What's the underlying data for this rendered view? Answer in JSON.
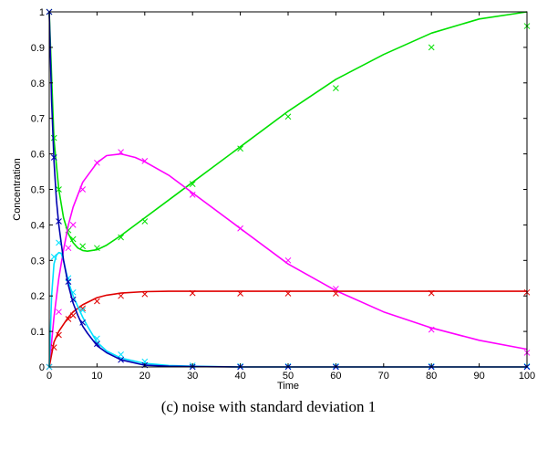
{
  "caption": "(c) noise with standard deviation 1",
  "chart_data": {
    "type": "line",
    "title": "",
    "xlabel": "Time",
    "ylabel": "Concentration",
    "xlim": [
      0,
      100
    ],
    "ylim": [
      0,
      1
    ],
    "xticks": [
      0,
      10,
      20,
      30,
      40,
      50,
      60,
      70,
      80,
      90,
      100
    ],
    "yticks": [
      0,
      0.1,
      0.2,
      0.3,
      0.4,
      0.5,
      0.6,
      0.7,
      0.8,
      0.9,
      1
    ],
    "ytick_labels": [
      "0",
      "0.1",
      "0.2",
      "0.3",
      "0.4",
      "0.5",
      "0.6",
      "0.7",
      "0.8",
      "0.9",
      "1"
    ],
    "grid": false,
    "series": [
      {
        "color": "#00e000",
        "curve": {
          "x": [
            0,
            1,
            2,
            3,
            4,
            5,
            6,
            7,
            8,
            10,
            12,
            15,
            20,
            25,
            30,
            40,
            50,
            60,
            70,
            80,
            90,
            100
          ],
          "y": [
            1.0,
            0.64,
            0.5,
            0.42,
            0.375,
            0.35,
            0.335,
            0.328,
            0.326,
            0.33,
            0.343,
            0.37,
            0.42,
            0.47,
            0.52,
            0.62,
            0.72,
            0.81,
            0.88,
            0.94,
            0.98,
            1.0
          ]
        },
        "markers": {
          "x": [
            0,
            1,
            2,
            4,
            5,
            7,
            10,
            15,
            20,
            30,
            40,
            50,
            60,
            80,
            100
          ],
          "y": [
            1.0,
            0.645,
            0.5,
            0.385,
            0.36,
            0.34,
            0.335,
            0.365,
            0.41,
            0.515,
            0.615,
            0.705,
            0.785,
            0.9,
            0.96
          ]
        }
      },
      {
        "color": "#ff00ff",
        "curve": {
          "x": [
            0,
            1,
            2,
            3,
            4,
            5,
            7,
            10,
            12,
            15,
            18,
            20,
            25,
            30,
            40,
            50,
            60,
            70,
            80,
            90,
            100
          ],
          "y": [
            0,
            0.14,
            0.25,
            0.33,
            0.4,
            0.45,
            0.52,
            0.575,
            0.595,
            0.6,
            0.59,
            0.578,
            0.54,
            0.49,
            0.39,
            0.29,
            0.215,
            0.155,
            0.11,
            0.075,
            0.05
          ]
        },
        "markers": {
          "x": [
            0,
            2,
            4,
            5,
            7,
            10,
            15,
            20,
            30,
            40,
            50,
            60,
            80,
            100
          ],
          "y": [
            0,
            0.155,
            0.335,
            0.4,
            0.5,
            0.575,
            0.605,
            0.58,
            0.485,
            0.39,
            0.3,
            0.22,
            0.105,
            0.04
          ]
        }
      },
      {
        "color": "#e00000",
        "curve": {
          "x": [
            0,
            1,
            2,
            3,
            4,
            5,
            7,
            10,
            12,
            15,
            20,
            25,
            30,
            40,
            50,
            60,
            70,
            80,
            90,
            100
          ],
          "y": [
            0,
            0.07,
            0.1,
            0.12,
            0.14,
            0.155,
            0.175,
            0.195,
            0.202,
            0.208,
            0.212,
            0.213,
            0.213,
            0.213,
            0.213,
            0.213,
            0.213,
            0.213,
            0.213,
            0.213
          ]
        },
        "markers": {
          "x": [
            0,
            1,
            2,
            4,
            5,
            7,
            10,
            15,
            20,
            30,
            40,
            50,
            60,
            80,
            100
          ],
          "y": [
            0,
            0.055,
            0.09,
            0.135,
            0.145,
            0.165,
            0.185,
            0.2,
            0.205,
            0.208,
            0.207,
            0.207,
            0.207,
            0.208,
            0.21
          ]
        }
      },
      {
        "color": "#00e0ff",
        "curve": {
          "x": [
            0,
            0.5,
            1,
            1.5,
            2,
            2.5,
            3,
            3.5,
            4,
            5,
            6,
            7,
            8,
            10,
            12,
            15,
            20,
            25,
            30,
            40,
            50,
            60,
            70,
            80,
            90,
            100
          ],
          "y": [
            0,
            0.2,
            0.29,
            0.315,
            0.322,
            0.32,
            0.3,
            0.27,
            0.24,
            0.2,
            0.17,
            0.14,
            0.115,
            0.07,
            0.045,
            0.025,
            0.01,
            0.004,
            0.002,
            0,
            0,
            0,
            0,
            0,
            0,
            0
          ]
        },
        "markers": {
          "x": [
            0,
            1,
            2,
            4,
            5,
            7,
            10,
            15,
            20,
            30,
            40,
            50,
            60,
            80,
            100
          ],
          "y": [
            0,
            0.31,
            0.35,
            0.25,
            0.21,
            0.16,
            0.08,
            0.035,
            0.015,
            0.004,
            0.002,
            0.002,
            0.002,
            0.002,
            0.002
          ]
        }
      },
      {
        "color": "#0000b0",
        "curve": {
          "x": [
            0,
            0.5,
            1,
            1.5,
            2,
            3,
            4,
            5,
            6,
            7,
            8,
            10,
            12,
            15,
            20,
            25,
            30,
            40,
            50,
            60,
            70,
            80,
            90,
            100
          ],
          "y": [
            1.0,
            0.75,
            0.58,
            0.47,
            0.4,
            0.3,
            0.23,
            0.18,
            0.145,
            0.115,
            0.095,
            0.06,
            0.04,
            0.02,
            0.005,
            0.002,
            0.001,
            0,
            0,
            0,
            0,
            0,
            0,
            0
          ]
        },
        "markers": {
          "x": [
            0,
            1,
            2,
            4,
            5,
            7,
            10,
            15,
            20,
            30,
            40,
            50,
            60,
            80,
            100
          ],
          "y": [
            1.0,
            0.59,
            0.41,
            0.24,
            0.19,
            0.125,
            0.065,
            0.02,
            0.005,
            0,
            0,
            0,
            0,
            0,
            0
          ]
        }
      }
    ]
  }
}
